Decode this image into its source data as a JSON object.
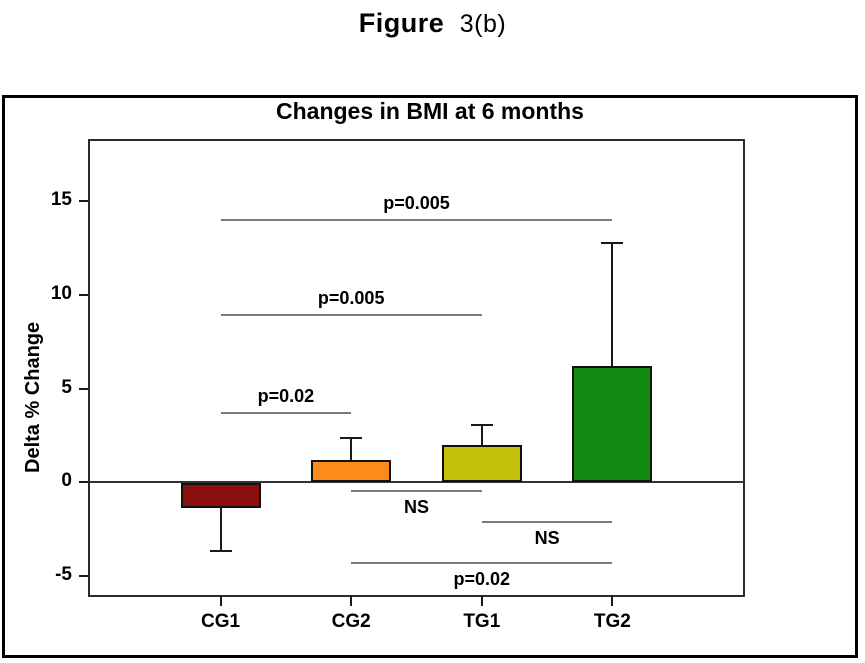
{
  "figure_caption": {
    "prefix": "Figure",
    "suffix": "3(b)"
  },
  "colors": {
    "axis": "#1a1a1a",
    "zero_line": "#333333",
    "sig_line": "#7a7a7a",
    "outer_border": "#000000"
  },
  "chart_data": {
    "type": "bar",
    "title": "Changes in BMI at 6 months",
    "xlabel": "",
    "ylabel": "Delta % Change",
    "categories": [
      "CG1",
      "CG2",
      "TG1",
      "TG2"
    ],
    "values": [
      -1.3,
      1.2,
      2.0,
      6.2
    ],
    "errors": [
      2.4,
      1.2,
      1.1,
      6.6
    ],
    "bar_colors": [
      "#8B0F0F",
      "#FB8C1C",
      "#C4C00C",
      "#108A10"
    ],
    "yticks": [
      15,
      10,
      5,
      0,
      -5
    ],
    "ylim": [
      -6,
      18.2
    ],
    "grid": false,
    "legend": null,
    "comparisons": [
      {
        "from": "CG1",
        "to": "CG2",
        "label": "p=0.02",
        "y": 3.7,
        "side": "above"
      },
      {
        "from": "CG1",
        "to": "TG1",
        "label": "p=0.005",
        "y": 8.9,
        "side": "above"
      },
      {
        "from": "CG1",
        "to": "TG2",
        "label": "p=0.005",
        "y": 14.0,
        "side": "above"
      },
      {
        "from": "CG2",
        "to": "TG1",
        "label": "NS",
        "y": -0.45,
        "side": "below"
      },
      {
        "from": "TG1",
        "to": "TG2",
        "label": "NS",
        "y": -2.1,
        "side": "below"
      },
      {
        "from": "CG2",
        "to": "TG2",
        "label": "p=0.02",
        "y": -4.3,
        "side": "below"
      }
    ]
  }
}
